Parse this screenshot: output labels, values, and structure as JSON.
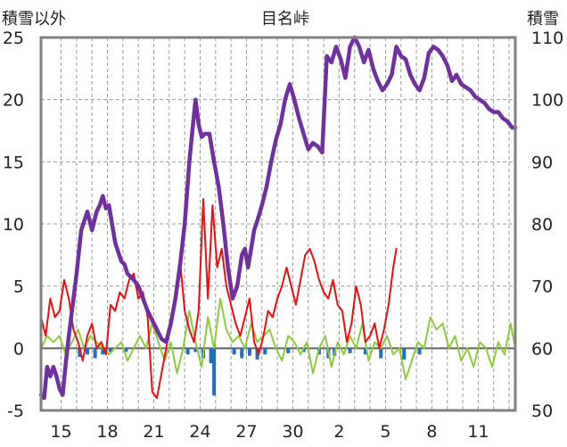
{
  "chart_data": {
    "type": "line",
    "title": "目名峠",
    "left_axis_label": "積雪以外",
    "right_axis_label": "積雪",
    "left_ylim": [
      -5,
      25
    ],
    "right_ylim": [
      50,
      110
    ],
    "left_ticks": [
      -5,
      0,
      5,
      10,
      15,
      20,
      25
    ],
    "right_ticks": [
      50,
      60,
      70,
      80,
      90,
      100,
      110
    ],
    "grid": true,
    "x_range_days": [
      0,
      30.7
    ],
    "x_ticks": [
      {
        "day": 1.3,
        "label": "15"
      },
      {
        "day": 4.3,
        "label": "18"
      },
      {
        "day": 7.3,
        "label": "21"
      },
      {
        "day": 10.3,
        "label": "24"
      },
      {
        "day": 13.3,
        "label": "27"
      },
      {
        "day": 16.3,
        "label": "30"
      },
      {
        "day": 19.3,
        "label": "2"
      },
      {
        "day": 22.3,
        "label": "5"
      },
      {
        "day": 25.3,
        "label": "8"
      },
      {
        "day": 28.3,
        "label": "11"
      }
    ],
    "colors": {
      "snow_depth": "#7030a0",
      "temperature": "#e81010",
      "wind": "#8ccc3c",
      "precipitation": "#1f6fbf"
    },
    "series": [
      {
        "key": "snow_depth",
        "axis": "right",
        "x": [
          0,
          0.2,
          0.4,
          0.6,
          0.8,
          1.0,
          1.2,
          1.4,
          1.6,
          1.8,
          2.0,
          2.3,
          2.6,
          3.0,
          3.3,
          3.6,
          3.8,
          4.0,
          4.2,
          4.4,
          4.6,
          4.8,
          5.0,
          5.2,
          5.4,
          5.6,
          5.8,
          6.0,
          6.3,
          6.6,
          6.9,
          7.2,
          7.5,
          7.8,
          8.1,
          8.4,
          8.7,
          9.0,
          9.3,
          9.6,
          9.8,
          10.0,
          10.2,
          10.4,
          10.6,
          10.9,
          11.2,
          11.5,
          11.8,
          12.1,
          12.4,
          12.7,
          13.0,
          13.2,
          13.4,
          13.6,
          13.8,
          14.0,
          14.3,
          14.6,
          14.9,
          15.2,
          15.5,
          15.8,
          16.1,
          16.4,
          16.7,
          17.0,
          17.3,
          17.6,
          17.9,
          18.2,
          18.5,
          18.8,
          19.1,
          19.4,
          19.7,
          20.0,
          20.3,
          20.6,
          20.9,
          21.2,
          21.5,
          21.8,
          22.1,
          22.4,
          22.7,
          23.0,
          23.3,
          23.6,
          23.9,
          24.2,
          24.5,
          24.8,
          25.1,
          25.4,
          25.7,
          26.0,
          26.3,
          26.6,
          26.9,
          27.2,
          27.5,
          27.8,
          28.1,
          28.4,
          28.7,
          29.0,
          29.3,
          29.6,
          29.9,
          30.2,
          30.5,
          30.7
        ],
        "values": [
          52.5,
          52.0,
          57.0,
          55.5,
          57.0,
          55.5,
          53.5,
          52.5,
          57.5,
          62.0,
          66.0,
          72.0,
          79.0,
          82.0,
          79.0,
          82.0,
          83.0,
          84.5,
          82.5,
          83.0,
          80.0,
          77.0,
          75.5,
          74.0,
          73.5,
          72.0,
          71.5,
          71.0,
          70.0,
          68.0,
          66.0,
          64.5,
          63.0,
          61.5,
          61.0,
          64.0,
          68.0,
          73.5,
          80.0,
          90.0,
          95.0,
          100.0,
          96.0,
          94.0,
          94.5,
          94.5,
          90.0,
          86.0,
          80.0,
          73.0,
          68.0,
          70.0,
          75.0,
          76.0,
          73.0,
          76.0,
          79.0,
          80.5,
          83.0,
          86.0,
          90.0,
          93.5,
          96.0,
          100.0,
          102.5,
          100.0,
          97.0,
          94.5,
          92.0,
          93.0,
          92.5,
          91.5,
          107.0,
          106.0,
          108.5,
          106.5,
          103.5,
          108.5,
          110.0,
          108.5,
          106.0,
          108.0,
          105.0,
          103.0,
          101.5,
          102.5,
          104.0,
          108.5,
          107.0,
          106.5,
          104.0,
          102.5,
          101.5,
          103.5,
          107.5,
          108.5,
          108.0,
          107.0,
          105.5,
          103.0,
          104.0,
          102.5,
          102.0,
          101.5,
          100.5,
          100.0,
          99.5,
          98.5,
          98.0,
          98.0,
          97.0,
          96.5,
          95.5,
          95.5
        ]
      },
      {
        "key": "temperature",
        "axis": "left",
        "x": [
          0,
          0.3,
          0.6,
          0.9,
          1.2,
          1.5,
          1.8,
          2.1,
          2.4,
          2.7,
          3.0,
          3.3,
          3.6,
          3.9,
          4.2,
          4.5,
          4.8,
          5.1,
          5.4,
          5.7,
          6.0,
          6.3,
          6.6,
          6.9,
          7.2,
          7.5,
          7.8,
          8.1,
          8.4,
          8.7,
          9.0,
          9.3,
          9.6,
          9.9,
          10.2,
          10.5,
          10.8,
          11.1,
          11.4,
          11.7,
          12.0,
          12.3,
          12.6,
          12.9,
          13.2,
          13.5,
          13.8,
          14.1,
          14.4,
          14.7,
          15.0,
          15.3,
          15.6,
          15.9,
          16.2,
          16.5,
          16.8,
          17.1,
          17.4,
          17.7,
          18.0,
          18.3,
          18.6,
          18.9,
          19.2,
          19.5,
          19.8,
          20.1,
          20.4,
          20.7,
          21.0,
          21.3,
          21.6,
          21.9,
          22.2,
          22.5,
          22.8,
          23.0
        ],
        "values": [
          2.5,
          1.0,
          4.0,
          2.5,
          3.0,
          5.5,
          4.0,
          1.5,
          0.5,
          -1.0,
          1.0,
          2.0,
          0.0,
          0.5,
          -0.5,
          3.5,
          3.0,
          4.5,
          4.0,
          5.5,
          6.0,
          4.0,
          4.5,
          2.5,
          -3.5,
          -4.0,
          -2.0,
          0.0,
          2.0,
          4.0,
          7.0,
          3.0,
          1.5,
          0.5,
          3.0,
          12.0,
          4.0,
          11.5,
          6.5,
          8.0,
          5.0,
          3.5,
          2.0,
          1.0,
          2.5,
          4.0,
          0.5,
          -0.5,
          1.0,
          3.0,
          2.5,
          4.0,
          5.0,
          6.5,
          5.0,
          3.5,
          5.5,
          7.5,
          8.0,
          7.0,
          5.5,
          4.5,
          4.0,
          5.5,
          3.5,
          3.0,
          0.5,
          2.0,
          5.0,
          3.5,
          0.5,
          1.0,
          2.0,
          0.0,
          1.5,
          3.5,
          6.5,
          8.0
        ]
      },
      {
        "key": "wind",
        "axis": "left",
        "x": [
          0,
          0.4,
          0.8,
          1.2,
          1.6,
          2.0,
          2.4,
          2.8,
          3.2,
          3.6,
          4.0,
          4.4,
          4.8,
          5.2,
          5.6,
          6.0,
          6.4,
          6.8,
          7.2,
          7.6,
          8.0,
          8.4,
          8.8,
          9.2,
          9.6,
          10.0,
          10.4,
          10.8,
          11.2,
          11.6,
          12.0,
          12.4,
          12.8,
          13.2,
          13.6,
          14.0,
          14.4,
          14.8,
          15.2,
          15.6,
          16.0,
          16.4,
          16.8,
          17.2,
          17.6,
          18.0,
          18.4,
          18.8,
          19.2,
          19.6,
          20.0,
          20.4,
          20.8,
          21.2,
          21.6,
          22.0,
          22.4,
          22.8,
          23.2,
          23.6,
          24.0,
          24.4,
          24.8,
          25.2,
          25.6,
          26.0,
          26.4,
          26.8,
          27.2,
          27.6,
          28.0,
          28.4,
          28.8,
          29.2,
          29.6,
          30.0,
          30.4,
          30.7
        ],
        "values": [
          0.0,
          1.0,
          0.5,
          1.0,
          -0.5,
          0.5,
          1.5,
          0.0,
          1.0,
          0.5,
          0.0,
          -0.5,
          0.0,
          0.5,
          -1.0,
          0.0,
          1.0,
          0.0,
          2.0,
          0.5,
          -1.0,
          0.5,
          -2.0,
          0.0,
          3.0,
          0.5,
          -1.5,
          2.5,
          0.0,
          4.0,
          1.5,
          0.5,
          1.0,
          0.0,
          2.0,
          0.5,
          1.0,
          1.5,
          0.0,
          -1.0,
          1.0,
          0.5,
          -0.5,
          0.5,
          -2.0,
          0.0,
          1.0,
          -1.5,
          0.5,
          -0.5,
          1.0,
          0.0,
          2.0,
          -1.0,
          0.5,
          0.0,
          1.0,
          -0.5,
          0.0,
          -2.5,
          -1.0,
          0.5,
          0.0,
          2.5,
          1.5,
          2.0,
          0.0,
          1.0,
          -1.0,
          0.0,
          -1.5,
          0.5,
          0.0,
          -1.5,
          0.5,
          -0.5,
          2.0,
          0.0
        ]
      },
      {
        "key": "precipitation",
        "axis": "left",
        "x": [
          2.5,
          3.0,
          3.5,
          4.0,
          4.5,
          5.5,
          9.5,
          10.0,
          10.5,
          11.0,
          11.2,
          12.5,
          13.0,
          13.5,
          14.0,
          14.5,
          16.0,
          17.0,
          18.0,
          18.6,
          19.0,
          20.0,
          21.0,
          22.0,
          23.5,
          24.5
        ],
        "values": [
          -0.7,
          -0.5,
          -0.8,
          -0.5,
          -0.3,
          -0.3,
          -0.5,
          -0.3,
          -0.8,
          -1.2,
          -3.8,
          -0.5,
          -0.8,
          -0.6,
          -0.9,
          -0.5,
          -0.4,
          -0.3,
          -0.5,
          -0.8,
          -0.6,
          -0.4,
          -0.5,
          -0.8,
          -0.9,
          -0.5
        ]
      }
    ]
  }
}
